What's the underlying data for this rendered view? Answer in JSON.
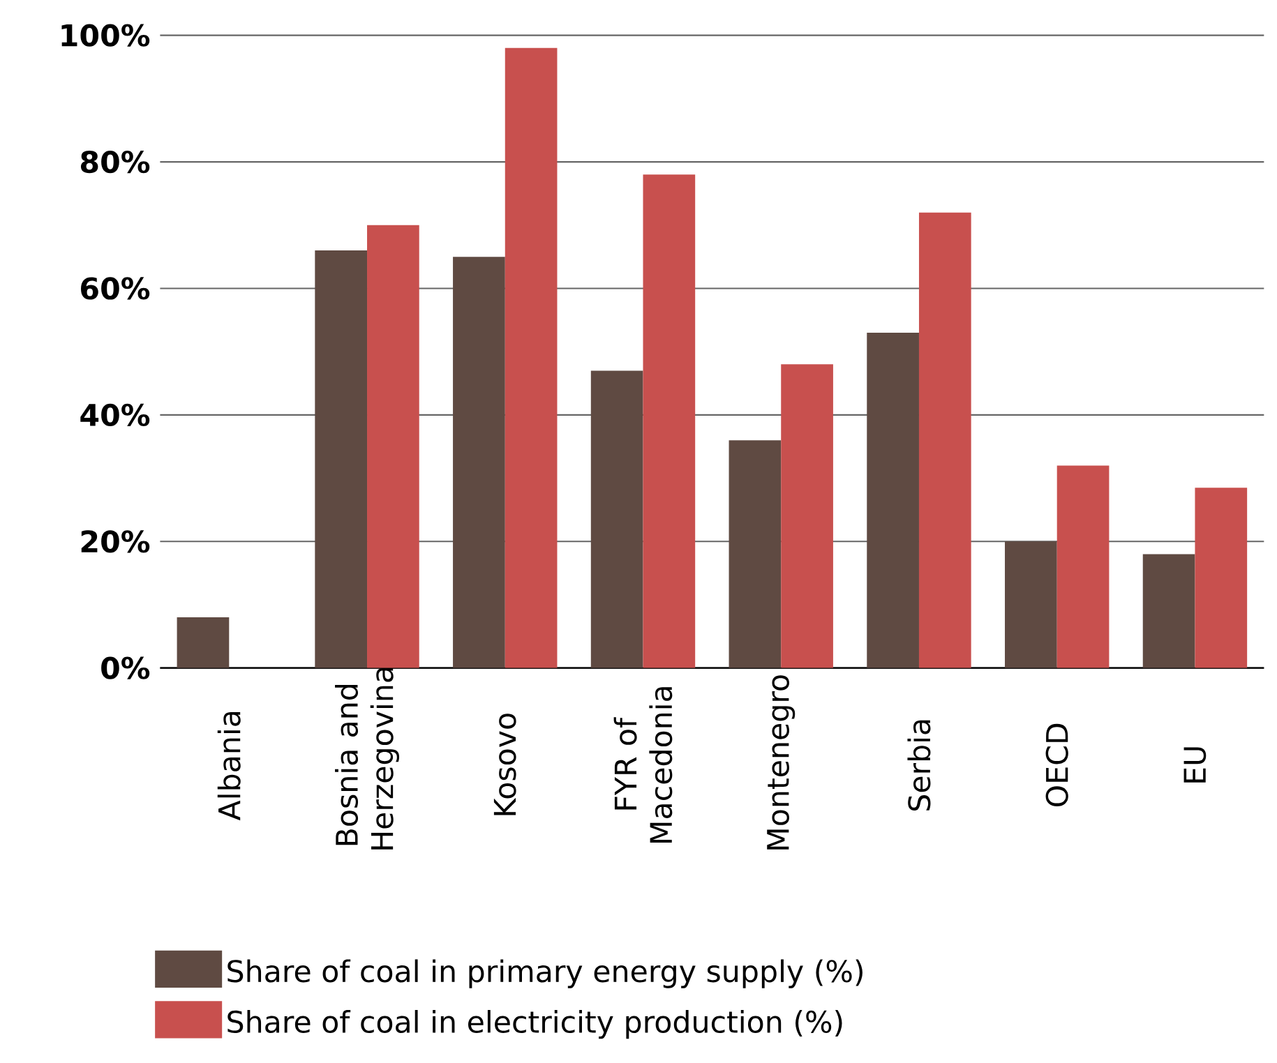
{
  "chart_data": {
    "type": "bar",
    "categories": [
      "Albania",
      "Bosnia and Herzegovina",
      "Kosovo",
      "FYR of Macedonia",
      "Montenegro",
      "Serbia",
      "OECD",
      "EU"
    ],
    "series": [
      {
        "name": "Share of coal in primary energy supply (%)",
        "color": "#5f4a42",
        "values": [
          8,
          66,
          65,
          47,
          36,
          53,
          20,
          18
        ]
      },
      {
        "name": "Share of coal in electricity production (%)",
        "color": "#c8504e",
        "values": [
          0,
          70,
          98,
          78,
          48,
          72,
          32,
          28.5
        ]
      }
    ],
    "ylim": [
      0,
      100
    ],
    "yticks": [
      {
        "value": 0,
        "label": "0%"
      },
      {
        "value": 20,
        "label": "20%"
      },
      {
        "value": 40,
        "label": "40%"
      },
      {
        "value": 60,
        "label": "60%"
      },
      {
        "value": 80,
        "label": "80%"
      },
      {
        "value": 100,
        "label": "100%"
      }
    ],
    "grid": "y",
    "legend": "bottom"
  }
}
